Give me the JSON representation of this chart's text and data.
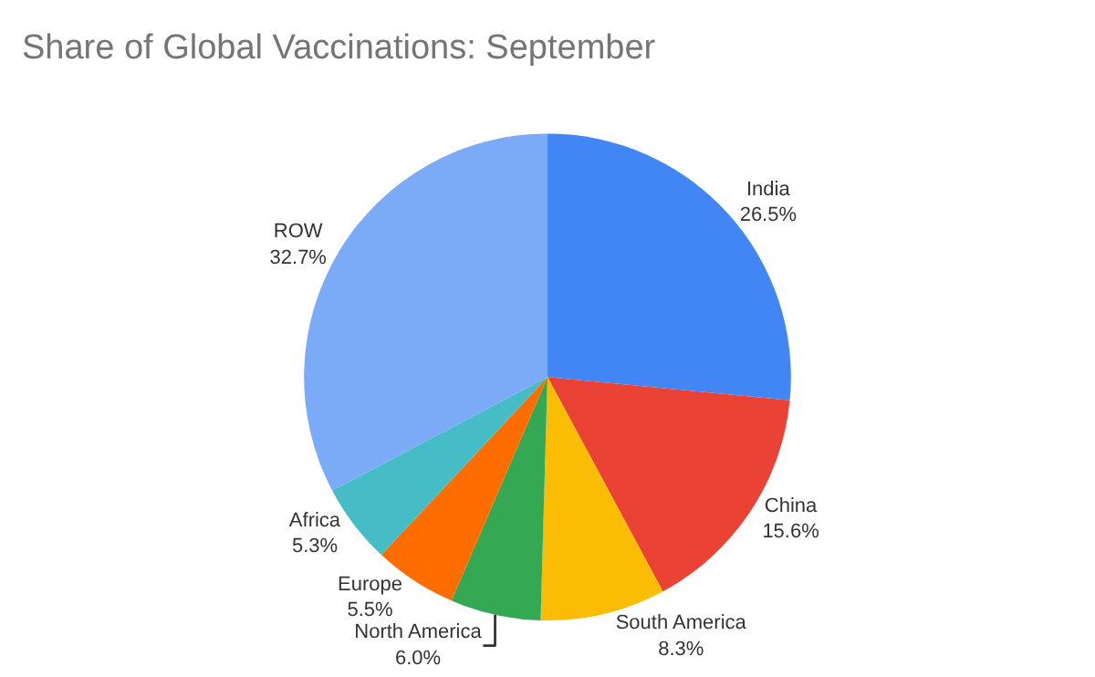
{
  "chart_data": {
    "type": "pie",
    "title": "Share of Global Vaccinations: September",
    "categories": [
      "India",
      "China",
      "South America",
      "North America",
      "Europe",
      "Africa",
      "ROW"
    ],
    "values": [
      26.5,
      15.6,
      8.3,
      6.0,
      5.5,
      5.3,
      32.7
    ],
    "value_labels": [
      "26.5%",
      "15.6%",
      "8.3%",
      "6.0%",
      "5.5%",
      "5.3%",
      "32.7%"
    ],
    "colors": [
      "#4285f4",
      "#ea4335",
      "#fbbc04",
      "#34a853",
      "#ff6d01",
      "#46bdc6",
      "#7baaf7"
    ],
    "legend": false
  }
}
